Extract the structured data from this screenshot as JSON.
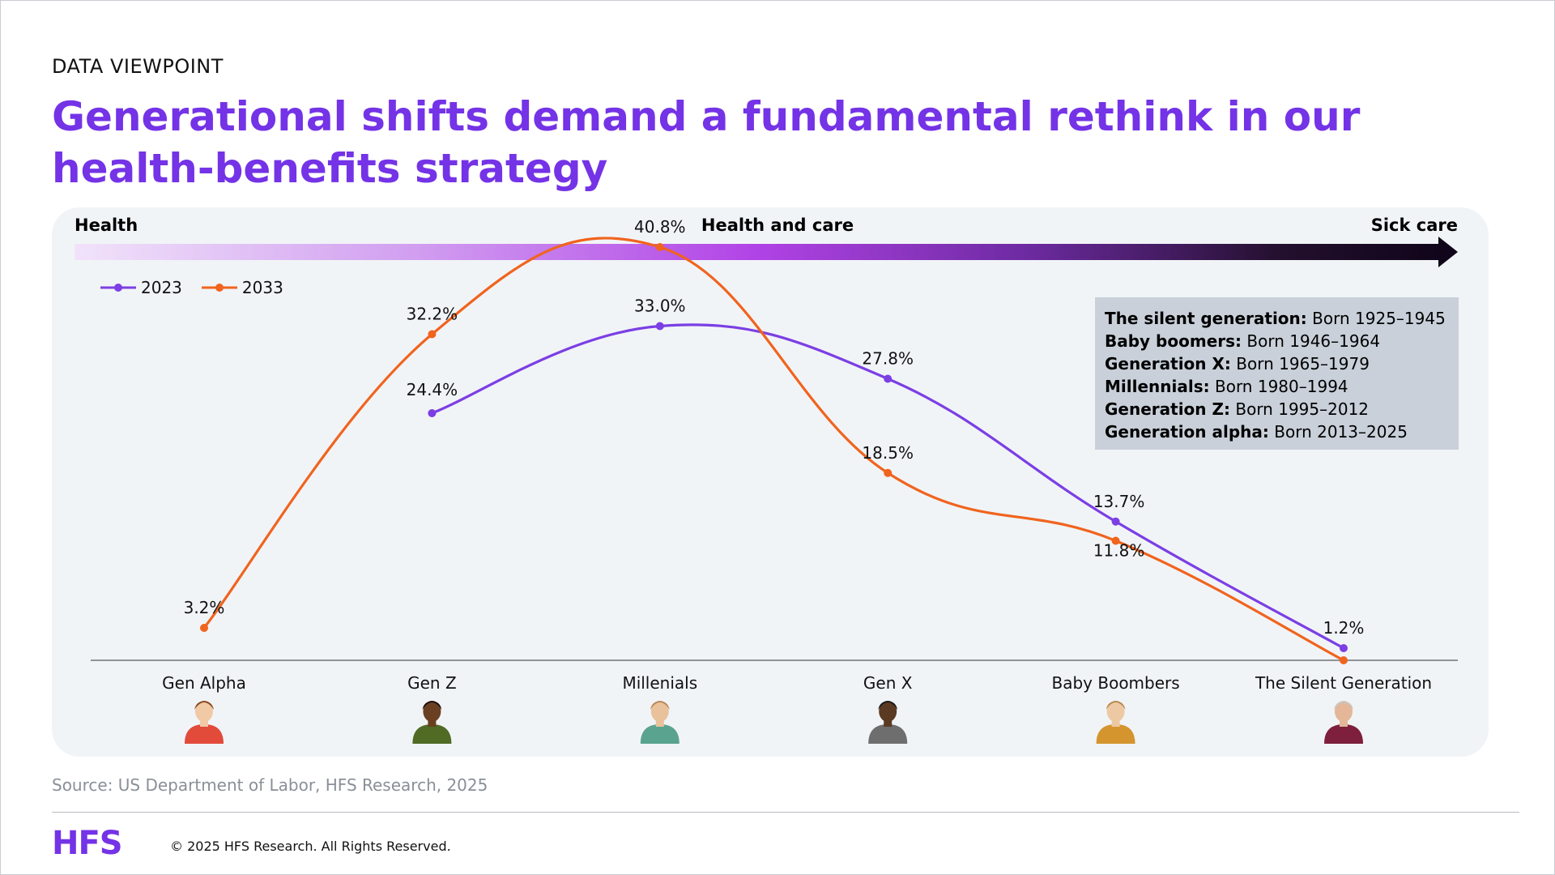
{
  "header": {
    "eyebrow": "DATA VIEWPOINT",
    "title": "Generational shifts demand a fundamental rethink in our health-benefits strategy"
  },
  "scale": {
    "left_label": "Health",
    "center_label": "Health and care",
    "right_label": "Sick care"
  },
  "infobox": [
    {
      "label": "The silent generation:",
      "text": " Born 1925–1945"
    },
    {
      "label": "Baby boomers:",
      "text": " Born 1946–1964"
    },
    {
      "label": "Generation X:",
      "text": " Born 1965–1979"
    },
    {
      "label": "Millennials:",
      "text": " Born 1980–1994"
    },
    {
      "label": "Generation Z:",
      "text": " Born 1995–2012"
    },
    {
      "label": "Generation alpha:",
      "text": " Born 2013–2025"
    }
  ],
  "colors": {
    "accent": "#7433e6",
    "series_2023": "#7b3fe4",
    "series_2033": "#f0641e"
  },
  "chart_data": {
    "type": "line",
    "categories": [
      "Gen Alpha",
      "Gen Z",
      "Millenials",
      "Gen X",
      "Baby Boombers",
      "The Silent Generation"
    ],
    "series": [
      {
        "name": "2023",
        "values": [
          null,
          24.4,
          33.0,
          27.8,
          13.7,
          1.2
        ],
        "labels": [
          "",
          "24.4%",
          "33.0%",
          "27.8%",
          "13.7%",
          "1.2%"
        ]
      },
      {
        "name": "2033",
        "values": [
          3.2,
          32.2,
          40.8,
          18.5,
          11.8,
          0.0
        ],
        "labels": [
          "3.2%",
          "32.2%",
          "40.8%",
          "18.5%",
          "11.8%",
          ""
        ]
      }
    ],
    "ylim": [
      0,
      45
    ],
    "grid": false,
    "smooth": true,
    "legend_position": "top-left",
    "category_icons": [
      "child-avatar-icon",
      "young-person-avatar-icon",
      "bearded-man-avatar-icon",
      "man-in-vest-avatar-icon",
      "woman-in-jacket-avatar-icon",
      "elderly-man-avatar-icon"
    ]
  },
  "footer": {
    "source": "Source: US Department of Labor, HFS Research, 2025",
    "logo": "HFS",
    "copyright": "© 2025 HFS Research. All Rights Reserved."
  }
}
